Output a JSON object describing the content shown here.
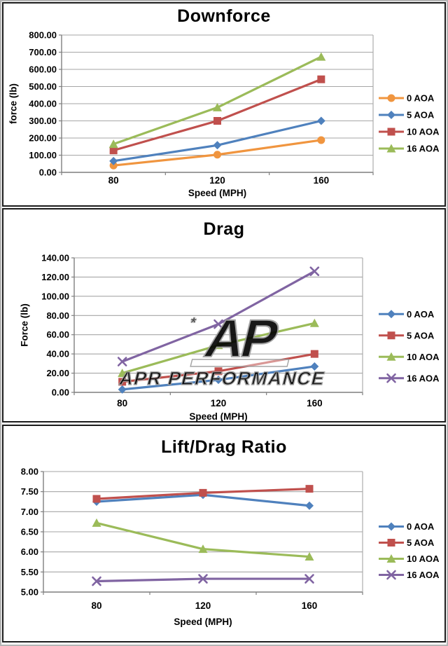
{
  "page": {
    "background_color": "#ffffff",
    "frame_color": "#b5b5b5",
    "panel_border_color": "#1c1c1c"
  },
  "chart_data": [
    {
      "type": "line",
      "title": "Downforce",
      "xlabel": "Speed (MPH)",
      "ylabel": "force (lb)",
      "categories": [
        "80",
        "120",
        "160"
      ],
      "y_axis": {
        "min": 0,
        "max": 800,
        "step": 100,
        "decimals": 2
      },
      "grid": true,
      "legend_position": "right",
      "series": [
        {
          "name": "0 AOA",
          "marker": "circle",
          "color": "#F0953F",
          "values": [
            40,
            103,
            188
          ]
        },
        {
          "name": "5 AOA",
          "marker": "diamond",
          "color": "#4F81BD",
          "values": [
            66,
            158,
            300
          ]
        },
        {
          "name": "10 AOA",
          "marker": "square",
          "color": "#C0504D",
          "values": [
            128,
            300,
            542
          ]
        },
        {
          "name": "16 AOA",
          "marker": "triangle",
          "color": "#9BBB59",
          "values": [
            165,
            378,
            673
          ]
        }
      ]
    },
    {
      "type": "line",
      "title": "Drag",
      "xlabel": "Speed (MPH)",
      "ylabel": "Force (lb)",
      "categories": [
        "80",
        "120",
        "160"
      ],
      "y_axis": {
        "min": 0,
        "max": 140,
        "step": 20,
        "decimals": 2
      },
      "grid": true,
      "legend_position": "right",
      "watermark": {
        "symbol": "AP",
        "text": "APR PERFORMANCE"
      },
      "series": [
        {
          "name": "0 AOA",
          "marker": "diamond",
          "color": "#4F81BD",
          "values": [
            3,
            13,
            27
          ]
        },
        {
          "name": "5 AOA",
          "marker": "square",
          "color": "#C0504D",
          "values": [
            11,
            22,
            40
          ]
        },
        {
          "name": "10 AOA",
          "marker": "triangle",
          "color": "#9BBB59",
          "values": [
            20,
            49,
            72
          ]
        },
        {
          "name": "16 AOA",
          "marker": "x",
          "color": "#8064A2",
          "values": [
            32,
            71,
            126
          ]
        }
      ]
    },
    {
      "type": "line",
      "title": "Lift/Drag Ratio",
      "xlabel": "Speed (MPH)",
      "ylabel": "",
      "categories": [
        "80",
        "120",
        "160"
      ],
      "y_axis": {
        "min": 5,
        "max": 8,
        "step": 0.5,
        "decimals": 2
      },
      "grid": true,
      "legend_position": "right",
      "series": [
        {
          "name": "0 AOA",
          "marker": "diamond",
          "color": "#4F81BD",
          "values": [
            7.25,
            7.42,
            7.15
          ]
        },
        {
          "name": "5 AOA",
          "marker": "square",
          "color": "#C0504D",
          "values": [
            7.32,
            7.47,
            7.57
          ]
        },
        {
          "name": "10 AOA",
          "marker": "triangle",
          "color": "#9BBB59",
          "values": [
            6.72,
            6.07,
            5.88
          ]
        },
        {
          "name": "16 AOA",
          "marker": "x",
          "color": "#8064A2",
          "values": [
            5.27,
            5.33,
            5.33
          ]
        }
      ]
    }
  ]
}
